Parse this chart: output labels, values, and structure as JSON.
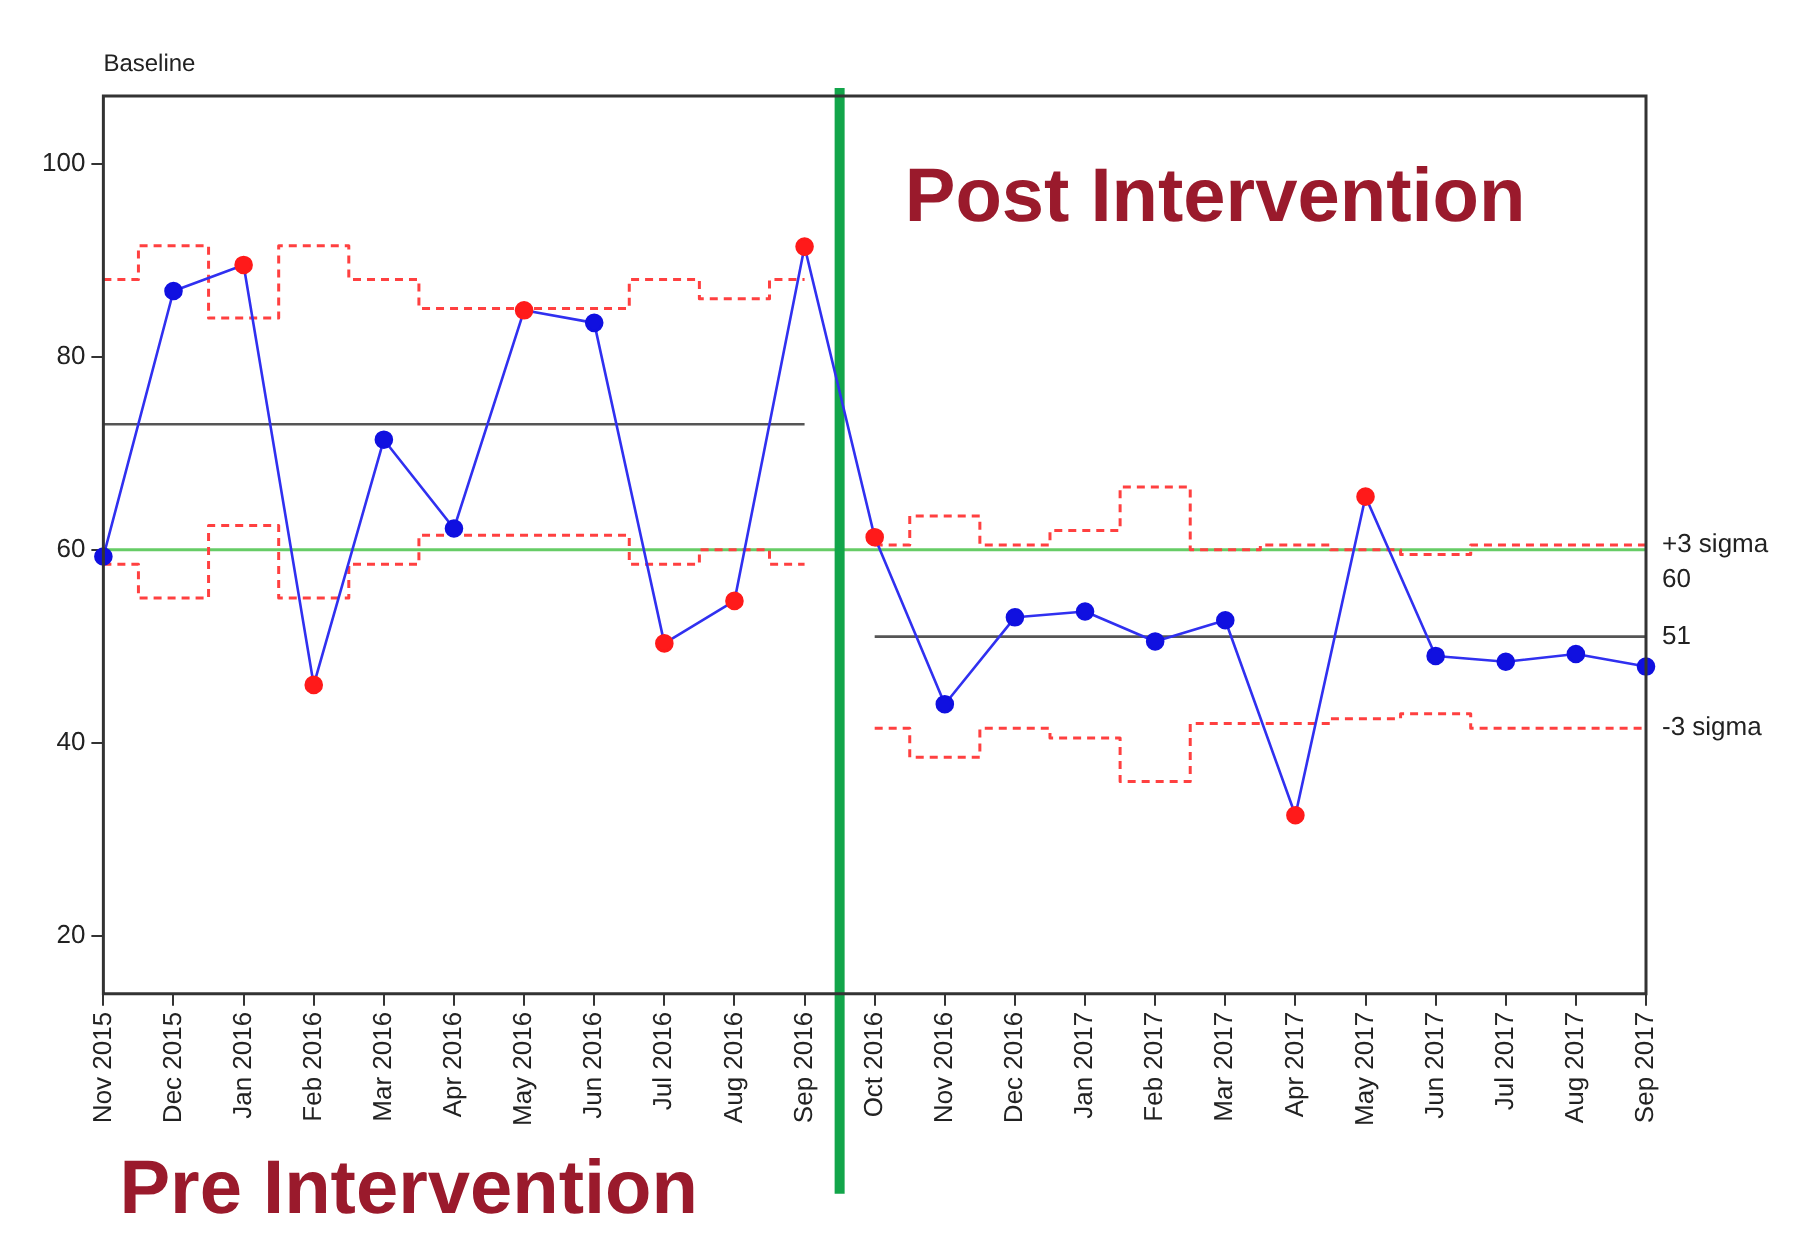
{
  "chart_data": {
    "type": "line",
    "categories": [
      "Nov 2015",
      "Dec 2015",
      "Jan 2016",
      "Feb 2016",
      "Mar 2016",
      "Apr 2016",
      "May 2016",
      "Jun 2016",
      "Jul 2016",
      "Aug 2016",
      "Sep 2016",
      "Oct 2016",
      "Nov 2016",
      "Dec 2016",
      "Jan 2017",
      "Feb 2017",
      "Mar 2017",
      "Apr 2017",
      "May 2017",
      "Jun 2017",
      "Jul 2017",
      "Aug 2017",
      "Sep 2017"
    ],
    "series": [
      {
        "color": "#3030f0",
        "marker": "circle",
        "colors": [
          "#1010e0",
          "#1010e0",
          "#ff1a1a",
          "#ff1a1a",
          "#1010e0",
          "#1010e0",
          "#ff1a1a",
          "#1010e0",
          "#ff1a1a",
          "#ff1a1a",
          "#ff1a1a",
          "#ff1a1a",
          "#1010e0",
          "#1010e0",
          "#1010e0",
          "#1010e0",
          "#1010e0",
          "#ff1a1a",
          "#ff1a1a",
          "#1010e0",
          "#1010e0",
          "#1010e0",
          "#1010e0"
        ],
        "values": [
          59.3,
          86.8,
          89.5,
          46,
          71.4,
          62.2,
          84.8,
          83.5,
          50.3,
          54.7,
          91.4,
          61.3,
          44,
          53,
          53.6,
          50.5,
          52.7,
          32.5,
          65.5,
          49,
          48.4,
          49.2,
          47.9
        ]
      },
      {
        "type": "step",
        "color": "#ff4040",
        "line_style": "dashed",
        "marker": "none",
        "values": [
          88,
          91.5,
          84,
          91.5,
          88,
          85,
          85,
          85,
          88,
          86,
          88,
          null,
          null,
          null,
          null,
          null,
          null,
          null,
          null,
          null,
          null,
          null,
          null
        ]
      },
      {
        "type": "step",
        "color": "#ff4040",
        "line_style": "dashed",
        "marker": "none",
        "values": [
          58.5,
          55,
          62.5,
          55,
          58.5,
          61.5,
          61.5,
          61.5,
          58.5,
          60,
          58.5,
          null,
          null,
          null,
          null,
          null,
          null,
          null,
          null,
          null,
          null,
          null,
          null
        ]
      },
      {
        "type": "step",
        "color": "#ff4040",
        "line_style": "dashed",
        "marker": "none",
        "values": [
          null,
          null,
          null,
          null,
          null,
          null,
          null,
          null,
          null,
          null,
          null,
          60.5,
          63.5,
          60.5,
          62,
          66.5,
          60,
          60.5,
          60,
          59.5,
          60.5,
          60.5,
          60.5
        ]
      },
      {
        "type": "step",
        "color": "#ff4040",
        "line_style": "dashed",
        "marker": "none",
        "values": [
          null,
          null,
          null,
          null,
          null,
          null,
          null,
          null,
          null,
          null,
          null,
          41.5,
          38.5,
          41.5,
          40.5,
          36,
          42,
          42,
          42.5,
          43,
          41.5,
          41.5,
          41.5
        ]
      },
      {
        "type": "line",
        "color": "#555555",
        "marker": "none",
        "values": [
          73,
          73,
          73,
          73,
          73,
          73,
          73,
          73,
          73,
          73,
          73,
          null,
          null,
          null,
          null,
          null,
          null,
          null,
          null,
          null,
          null,
          null,
          null
        ]
      },
      {
        "type": "line",
        "color": "#555555",
        "marker": "none",
        "values": [
          null,
          null,
          null,
          null,
          null,
          null,
          null,
          null,
          null,
          null,
          null,
          51,
          51,
          51,
          51,
          51,
          51,
          51,
          51,
          51,
          51,
          51,
          51
        ]
      }
    ],
    "ylim": [
      14,
      107
    ],
    "yticks": [
      20,
      40,
      60,
      80,
      100
    ],
    "grid": false,
    "legend": false,
    "ref_lines": [
      {
        "axis": "y",
        "value": 60,
        "color": "#66cc66"
      },
      {
        "axis": "x",
        "value": "Oct 2016",
        "color": "#12a54a"
      }
    ],
    "annotations": [
      "Baseline",
      "Post Intervention",
      "Pre Intervention",
      {
        "text": "+3 sigma",
        "x": "Sep 2017",
        "y": 60.5
      },
      {
        "text": "60",
        "x": "Sep 2017",
        "y": 60
      },
      {
        "text": "51",
        "x": "Sep 2017",
        "y": 51
      },
      {
        "text": "-3 sigma",
        "x": "Sep 2017",
        "y": 41.5
      }
    ]
  }
}
